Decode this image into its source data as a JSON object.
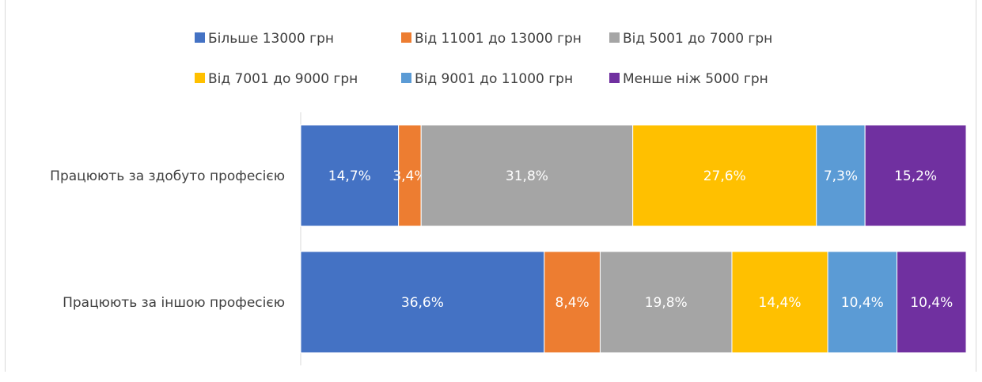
{
  "chart_data": {
    "type": "bar",
    "orientation": "horizontal",
    "stacked": "100%",
    "categories": [
      "Працюють за здобуто професією",
      "Працюють за іншою професією"
    ],
    "series": [
      {
        "name": "Більше 13000 грн",
        "color": "#4472C4",
        "values": [
          14.7,
          36.6
        ],
        "labels": [
          "14,7%",
          "36,6%"
        ]
      },
      {
        "name": "Від 11001 до 13000 грн",
        "color": "#ED7D31",
        "values": [
          3.4,
          8.4
        ],
        "labels": [
          "3,4%",
          "8,4%"
        ]
      },
      {
        "name": "Від 5001 до 7000 грн",
        "color": "#A5A5A5",
        "values": [
          31.8,
          19.8
        ],
        "labels": [
          "31,8%",
          "19,8%"
        ]
      },
      {
        "name": "Від 7001 до 9000 грн",
        "color": "#FFC000",
        "values": [
          27.6,
          14.4
        ],
        "labels": [
          "27,6%",
          "14,4%"
        ]
      },
      {
        "name": "Від 9001 до 11000 грн",
        "color": "#5B9BD5",
        "values": [
          7.3,
          10.4
        ],
        "labels": [
          "7,3%",
          "10,4%"
        ]
      },
      {
        "name": "Менше ніж 5000 грн",
        "color": "#7030A0",
        "values": [
          15.2,
          10.4
        ],
        "labels": [
          "15,2%",
          "10,4%"
        ]
      }
    ],
    "legend_position": "top",
    "grid": false
  }
}
